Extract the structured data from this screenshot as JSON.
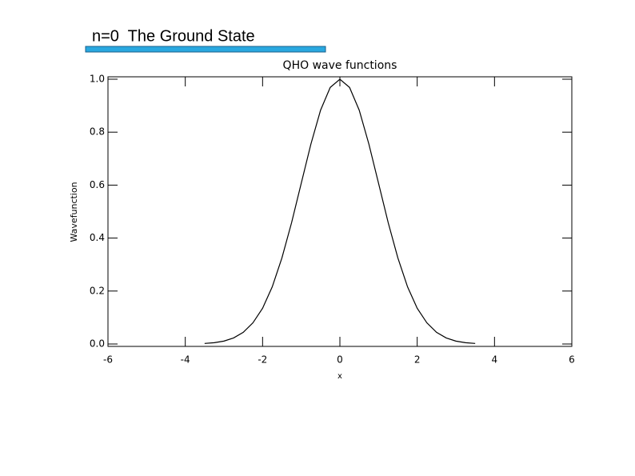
{
  "header": {
    "title": "n=0  The Ground State"
  },
  "chart_data": {
    "type": "line",
    "title": "QHO wave functions",
    "x_label": "x",
    "y_label": "Wavefunction",
    "color": "#000000",
    "x": [
      -3.5,
      -3.25,
      -3,
      -2.75,
      -2.5,
      -2.25,
      -2,
      -1.75,
      -1.5,
      -1.25,
      -1,
      -0.75,
      -0.5,
      -0.25,
      0,
      0.25,
      0.5,
      0.75,
      1,
      1.25,
      1.5,
      1.75,
      2,
      2.25,
      2.5,
      2.75,
      3,
      3.25,
      3.5
    ],
    "values": [
      0.002,
      0.005,
      0.011,
      0.023,
      0.044,
      0.08,
      0.135,
      0.216,
      0.325,
      0.458,
      0.607,
      0.755,
      0.883,
      0.969,
      1.0,
      0.969,
      0.883,
      0.755,
      0.607,
      0.458,
      0.325,
      0.216,
      0.135,
      0.08,
      0.044,
      0.023,
      0.011,
      0.005,
      0.002
    ],
    "xlim": [
      -6,
      6
    ],
    "xticks": [
      -6,
      -4,
      -2,
      0,
      2,
      4,
      6
    ],
    "ylim": [
      0,
      1
    ],
    "yticks": [
      {
        "value": 0,
        "label": "0.0"
      },
      0.2,
      0.4,
      0.6,
      0.8,
      {
        "value": 1,
        "label": "1.0"
      }
    ]
  }
}
